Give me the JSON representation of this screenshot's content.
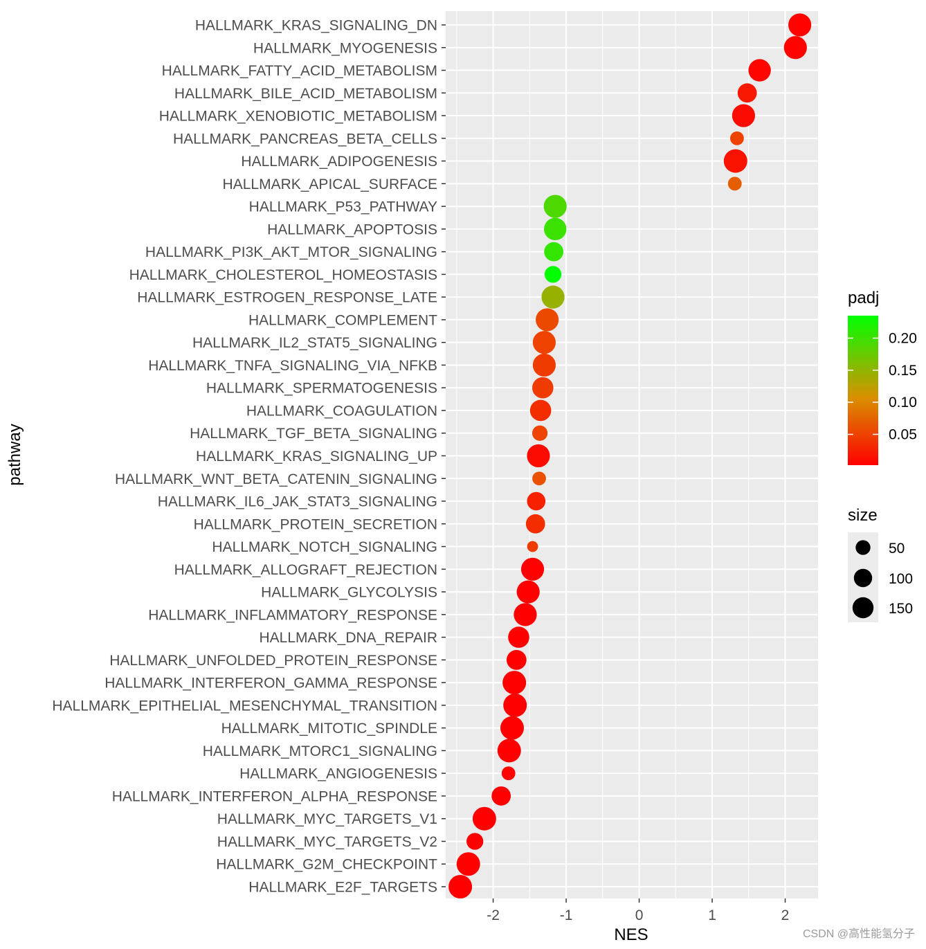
{
  "chart_data": {
    "type": "scatter",
    "title": "",
    "xlabel": "NES",
    "ylabel": "pathway",
    "xlim": [
      -2.65,
      2.45
    ],
    "xticks": [
      -2,
      -1,
      0,
      1,
      2
    ],
    "xtick_labels": [
      "-2",
      "-1",
      "0",
      "1",
      "2"
    ],
    "grid": true,
    "points": [
      {
        "pathway": "HALLMARK_KRAS_SIGNALING_DN",
        "NES": 2.2,
        "padj": 0.004,
        "size": 150
      },
      {
        "pathway": "HALLMARK_MYOGENESIS",
        "NES": 2.14,
        "padj": 0.004,
        "size": 150
      },
      {
        "pathway": "HALLMARK_FATTY_ACID_METABOLISM",
        "NES": 1.65,
        "padj": 0.006,
        "size": 140
      },
      {
        "pathway": "HALLMARK_BILE_ACID_METABOLISM",
        "NES": 1.48,
        "padj": 0.02,
        "size": 90
      },
      {
        "pathway": "HALLMARK_XENOBIOTIC_METABOLISM",
        "NES": 1.43,
        "padj": 0.01,
        "size": 150
      },
      {
        "pathway": "HALLMARK_PANCREAS_BETA_CELLS",
        "NES": 1.34,
        "padj": 0.05,
        "size": 30
      },
      {
        "pathway": "HALLMARK_ADIPOGENESIS",
        "NES": 1.32,
        "padj": 0.015,
        "size": 160
      },
      {
        "pathway": "HALLMARK_APICAL_SURFACE",
        "NES": 1.31,
        "padj": 0.07,
        "size": 30
      },
      {
        "pathway": "HALLMARK_P53_PATHWAY",
        "NES": -1.15,
        "padj": 0.19,
        "size": 150
      },
      {
        "pathway": "HALLMARK_APOPTOSIS",
        "NES": -1.15,
        "padj": 0.2,
        "size": 140
      },
      {
        "pathway": "HALLMARK_PI3K_AKT_MTOR_SIGNALING",
        "NES": -1.17,
        "padj": 0.205,
        "size": 90
      },
      {
        "pathway": "HALLMARK_CHOLESTEROL_HOMEOSTASIS",
        "NES": -1.18,
        "padj": 0.235,
        "size": 60
      },
      {
        "pathway": "HALLMARK_ESTROGEN_RESPONSE_LATE",
        "NES": -1.18,
        "padj": 0.145,
        "size": 150
      },
      {
        "pathway": "HALLMARK_COMPLEMENT",
        "NES": -1.26,
        "padj": 0.055,
        "size": 150
      },
      {
        "pathway": "HALLMARK_IL2_STAT5_SIGNALING",
        "NES": -1.3,
        "padj": 0.05,
        "size": 150
      },
      {
        "pathway": "HALLMARK_TNFA_SIGNALING_VIA_NFKB",
        "NES": -1.3,
        "padj": 0.045,
        "size": 150
      },
      {
        "pathway": "HALLMARK_SPERMATOGENESIS",
        "NES": -1.32,
        "padj": 0.045,
        "size": 120
      },
      {
        "pathway": "HALLMARK_COAGULATION",
        "NES": -1.35,
        "padj": 0.035,
        "size": 120
      },
      {
        "pathway": "HALLMARK_TGF_BETA_SIGNALING",
        "NES": -1.36,
        "padj": 0.05,
        "size": 45
      },
      {
        "pathway": "HALLMARK_KRAS_SIGNALING_UP",
        "NES": -1.38,
        "padj": 0.01,
        "size": 150
      },
      {
        "pathway": "HALLMARK_WNT_BETA_CATENIN_SIGNALING",
        "NES": -1.37,
        "padj": 0.06,
        "size": 30
      },
      {
        "pathway": "HALLMARK_IL6_JAK_STAT3_SIGNALING",
        "NES": -1.41,
        "padj": 0.025,
        "size": 80
      },
      {
        "pathway": "HALLMARK_PROTEIN_SECRETION",
        "NES": -1.42,
        "padj": 0.035,
        "size": 90
      },
      {
        "pathway": "HALLMARK_NOTCH_SIGNALING",
        "NES": -1.46,
        "padj": 0.045,
        "size": 12
      },
      {
        "pathway": "HALLMARK_ALLOGRAFT_REJECTION",
        "NES": -1.46,
        "padj": 0.003,
        "size": 150
      },
      {
        "pathway": "HALLMARK_GLYCOLYSIS",
        "NES": -1.52,
        "padj": 0.002,
        "size": 150
      },
      {
        "pathway": "HALLMARK_INFLAMMATORY_RESPONSE",
        "NES": -1.56,
        "padj": 0.002,
        "size": 150
      },
      {
        "pathway": "HALLMARK_DNA_REPAIR",
        "NES": -1.65,
        "padj": 0.002,
        "size": 120
      },
      {
        "pathway": "HALLMARK_UNFOLDED_PROTEIN_RESPONSE",
        "NES": -1.68,
        "padj": 0.002,
        "size": 100
      },
      {
        "pathway": "HALLMARK_INTERFERON_GAMMA_RESPONSE",
        "NES": -1.71,
        "padj": 0.002,
        "size": 160
      },
      {
        "pathway": "HALLMARK_EPITHELIAL_MESENCHYMAL_TRANSITION",
        "NES": -1.7,
        "padj": 0.002,
        "size": 160
      },
      {
        "pathway": "HALLMARK_MITOTIC_SPINDLE",
        "NES": -1.74,
        "padj": 0.002,
        "size": 160
      },
      {
        "pathway": "HALLMARK_MTORC1_SIGNALING",
        "NES": -1.78,
        "padj": 0.002,
        "size": 160
      },
      {
        "pathway": "HALLMARK_ANGIOGENESIS",
        "NES": -1.79,
        "padj": 0.004,
        "size": 30
      },
      {
        "pathway": "HALLMARK_INTERFERON_ALPHA_RESPONSE",
        "NES": -1.89,
        "padj": 0.002,
        "size": 90
      },
      {
        "pathway": "HALLMARK_MYC_TARGETS_V1",
        "NES": -2.12,
        "padj": 0.002,
        "size": 160
      },
      {
        "pathway": "HALLMARK_MYC_TARGETS_V2",
        "NES": -2.25,
        "padj": 0.002,
        "size": 60
      },
      {
        "pathway": "HALLMARK_G2M_CHECKPOINT",
        "NES": -2.34,
        "padj": 0.002,
        "size": 160
      },
      {
        "pathway": "HALLMARK_E2F_TARGETS",
        "NES": -2.45,
        "padj": 0.002,
        "size": 160
      }
    ],
    "color_legend": {
      "title": "padj",
      "range": [
        0.002,
        0.235
      ],
      "low_color": "#ff0000",
      "mid_color": "#d99000",
      "high_color": "#00ff00",
      "ticks": [
        0.2,
        0.15,
        0.1,
        0.05
      ],
      "tick_labels": [
        "0.20",
        "0.15",
        "0.10",
        "0.05"
      ]
    },
    "size_legend": {
      "title": "size",
      "values": [
        50,
        100,
        150
      ],
      "labels": [
        "50",
        "100",
        "150"
      ]
    }
  },
  "watermark": "CSDN @高性能氢分子"
}
